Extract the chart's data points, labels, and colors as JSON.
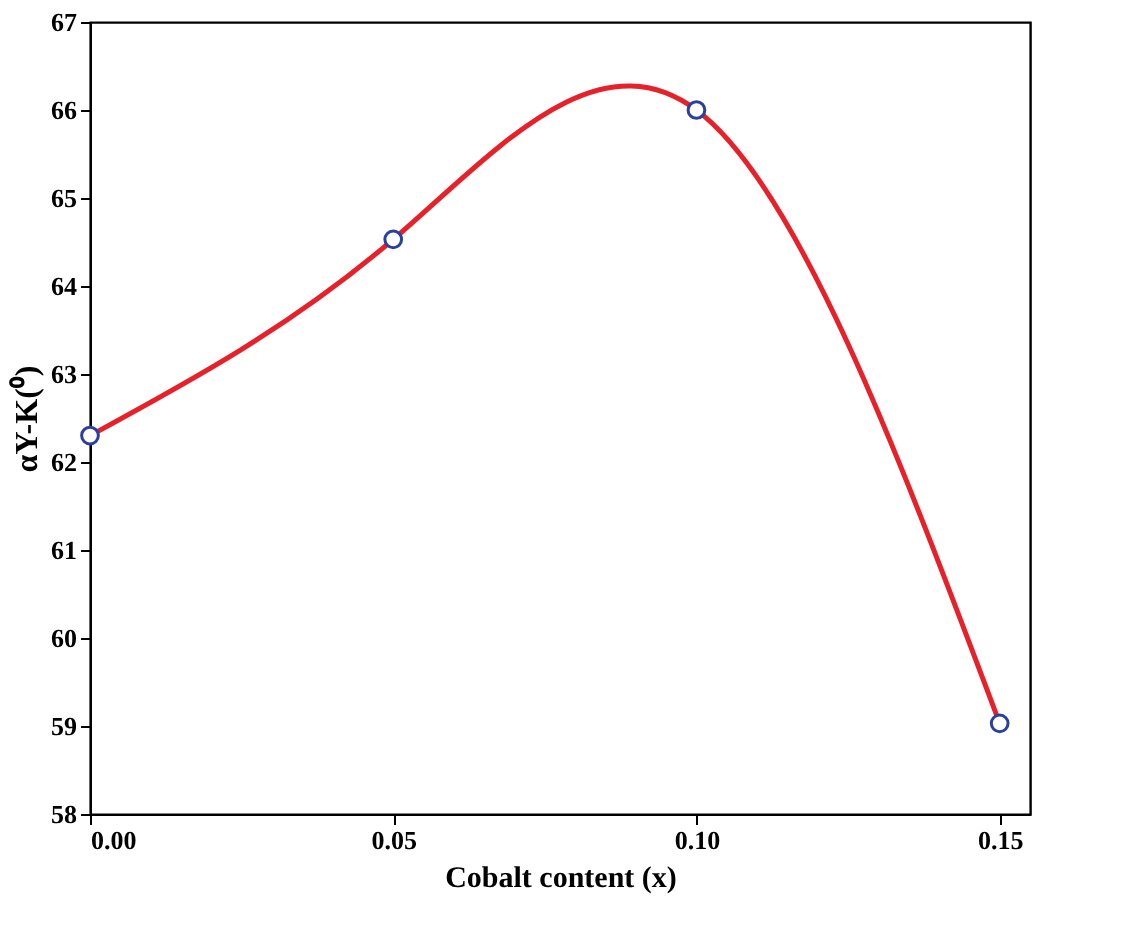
{
  "chart_data": {
    "type": "line",
    "xlabel": "Cobalt content (x)",
    "ylabel": "αY-K(⁰)",
    "x": [
      0.0,
      0.05,
      0.1,
      0.15
    ],
    "series": [
      {
        "type": "line",
        "color": "#e8202a",
        "values": [
          62.3,
          64.53,
          66.0,
          59.03
        ],
        "marker": "none"
      },
      {
        "type": "scatter",
        "color": "#2b3f9e",
        "values": [
          62.3,
          64.53,
          66.0,
          59.03
        ],
        "marker": "circle"
      }
    ],
    "xlim": [
      0.0,
      0.155
    ],
    "xticks": [
      {
        "value": 0.0,
        "label": "0.00"
      },
      {
        "value": 0.05,
        "label": "0.05"
      },
      {
        "value": 0.1,
        "label": "0.10"
      },
      {
        "value": 0.15,
        "label": "0.15"
      }
    ],
    "ylim": [
      58,
      67
    ],
    "yticks": [
      58,
      59,
      60,
      61,
      62,
      63,
      64,
      65,
      66,
      67
    ],
    "grid": false
  }
}
